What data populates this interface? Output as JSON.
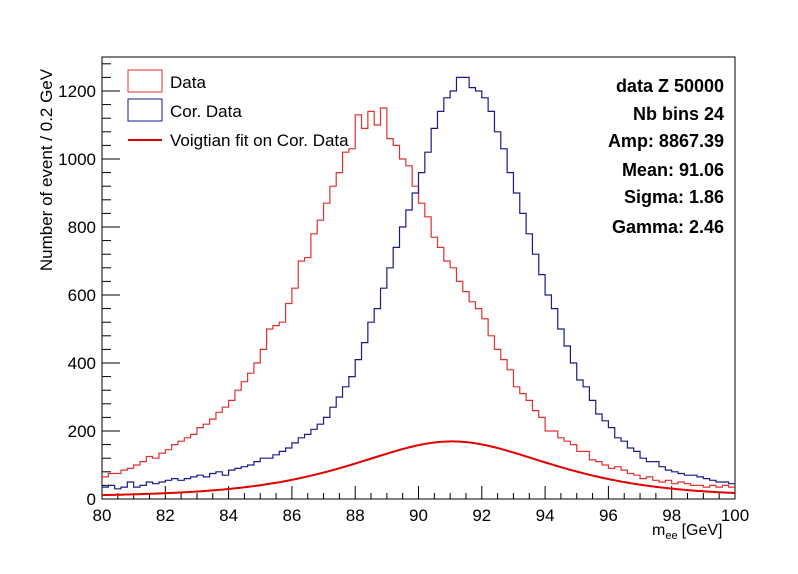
{
  "chart_data": {
    "type": "line",
    "xlabel": "m",
    "xlabel_sub": "ee",
    "xlabel_unit": "[GeV]",
    "ylabel": "Number of event / 0.2 GeV",
    "xlim": [
      80,
      100
    ],
    "ylim": [
      0,
      1300
    ],
    "xticks": [
      80,
      82,
      84,
      86,
      88,
      90,
      92,
      94,
      96,
      98,
      100
    ],
    "yticks": [
      0,
      200,
      400,
      600,
      800,
      1000,
      1200
    ],
    "grid": false,
    "legend_position": "top-left",
    "legend": [
      {
        "label": "Data",
        "style": "box",
        "color": "#e03030"
      },
      {
        "label": "Cor. Data",
        "style": "box",
        "color": "#1a1a8c"
      },
      {
        "label": "Voigtian fit on Cor. Data",
        "style": "line",
        "color": "#e00000"
      }
    ],
    "stats": [
      "data Z 50000",
      "Nb bins 24",
      "Amp: 8867.39",
      "Mean: 91.06",
      "Sigma: 1.86",
      "Gamma: 2.46"
    ],
    "fit_params": {
      "amp": 8867.39,
      "mean": 91.06,
      "sigma": 1.86,
      "gamma": 2.46
    },
    "series": [
      {
        "name": "Data",
        "type": "step",
        "color": "#e03030",
        "x": [
          80.0,
          80.2,
          80.4,
          80.6,
          80.8,
          81.0,
          81.2,
          81.4,
          81.6,
          81.8,
          82.0,
          82.2,
          82.4,
          82.6,
          82.8,
          83.0,
          83.2,
          83.4,
          83.6,
          83.8,
          84.0,
          84.2,
          84.4,
          84.6,
          84.8,
          85.0,
          85.2,
          85.4,
          85.6,
          85.8,
          86.0,
          86.2,
          86.4,
          86.6,
          86.8,
          87.0,
          87.2,
          87.4,
          87.6,
          87.8,
          88.0,
          88.2,
          88.4,
          88.6,
          88.8,
          89.0,
          89.2,
          89.4,
          89.6,
          89.8,
          90.0,
          90.2,
          90.4,
          90.6,
          90.8,
          91.0,
          91.2,
          91.4,
          91.6,
          91.8,
          92.0,
          92.2,
          92.4,
          92.6,
          92.8,
          93.0,
          93.2,
          93.4,
          93.6,
          93.8,
          94.0,
          94.2,
          94.4,
          94.6,
          94.8,
          95.0,
          95.2,
          95.4,
          95.6,
          95.8,
          96.0,
          96.2,
          96.4,
          96.6,
          96.8,
          97.0,
          97.2,
          97.4,
          97.6,
          97.8,
          98.0,
          98.2,
          98.4,
          98.6,
          98.8,
          99.0,
          99.2,
          99.4,
          99.6,
          99.8
        ],
        "values": [
          65,
          75,
          75,
          85,
          90,
          100,
          110,
          125,
          120,
          135,
          145,
          160,
          170,
          180,
          190,
          210,
          220,
          235,
          255,
          270,
          290,
          320,
          345,
          370,
          400,
          440,
          500,
          510,
          520,
          575,
          620,
          700,
          710,
          780,
          820,
          870,
          920,
          960,
          1020,
          1030,
          1130,
          1090,
          1140,
          1100,
          1150,
          1060,
          1040,
          1000,
          980,
          920,
          870,
          830,
          770,
          740,
          700,
          680,
          640,
          610,
          580,
          560,
          530,
          480,
          440,
          410,
          380,
          330,
          310,
          290,
          260,
          240,
          200,
          200,
          180,
          170,
          160,
          140,
          140,
          115,
          110,
          100,
          90,
          95,
          85,
          75,
          70,
          60,
          65,
          55,
          50,
          55,
          45,
          50,
          45,
          40,
          40,
          35,
          40,
          35,
          40,
          35
        ]
      },
      {
        "name": "Cor. Data",
        "type": "step",
        "color": "#1a1a8c",
        "x": [
          80.0,
          80.2,
          80.4,
          80.6,
          80.8,
          81.0,
          81.2,
          81.4,
          81.6,
          81.8,
          82.0,
          82.2,
          82.4,
          82.6,
          82.8,
          83.0,
          83.2,
          83.4,
          83.6,
          83.8,
          84.0,
          84.2,
          84.4,
          84.6,
          84.8,
          85.0,
          85.2,
          85.4,
          85.6,
          85.8,
          86.0,
          86.2,
          86.4,
          86.6,
          86.8,
          87.0,
          87.2,
          87.4,
          87.6,
          87.8,
          88.0,
          88.2,
          88.4,
          88.6,
          88.8,
          89.0,
          89.2,
          89.4,
          89.6,
          89.8,
          90.0,
          90.2,
          90.4,
          90.6,
          90.8,
          91.0,
          91.2,
          91.4,
          91.6,
          91.8,
          92.0,
          92.2,
          92.4,
          92.6,
          92.8,
          93.0,
          93.2,
          93.4,
          93.6,
          93.8,
          94.0,
          94.2,
          94.4,
          94.6,
          94.8,
          95.0,
          95.2,
          95.4,
          95.6,
          95.8,
          96.0,
          96.2,
          96.4,
          96.6,
          96.8,
          97.0,
          97.2,
          97.4,
          97.6,
          97.8,
          98.0,
          98.2,
          98.4,
          98.6,
          98.8,
          99.0,
          99.2,
          99.4,
          99.6,
          99.8
        ],
        "values": [
          35,
          40,
          30,
          35,
          50,
          35,
          40,
          50,
          45,
          50,
          55,
          60,
          55,
          60,
          65,
          70,
          65,
          75,
          80,
          70,
          85,
          90,
          95,
          100,
          110,
          120,
          120,
          130,
          140,
          150,
          165,
          180,
          190,
          205,
          220,
          240,
          270,
          300,
          330,
          360,
          410,
          460,
          520,
          560,
          620,
          680,
          740,
          800,
          850,
          900,
          960,
          1020,
          1090,
          1140,
          1180,
          1200,
          1240,
          1240,
          1210,
          1200,
          1180,
          1140,
          1080,
          1030,
          960,
          900,
          840,
          780,
          720,
          660,
          600,
          560,
          500,
          450,
          400,
          350,
          330,
          290,
          250,
          230,
          210,
          180,
          170,
          150,
          140,
          120,
          110,
          110,
          95,
          85,
          80,
          75,
          70,
          70,
          65,
          60,
          55,
          50,
          50,
          45
        ]
      }
    ]
  }
}
